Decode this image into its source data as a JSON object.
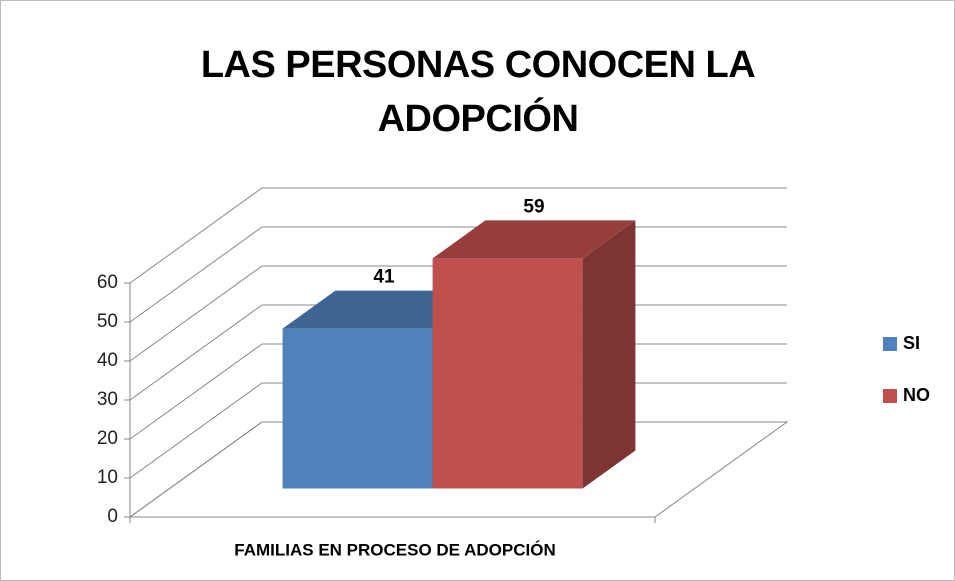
{
  "chart_data": {
    "type": "bar3d",
    "title": "LAS PERSONAS CONOCEN LA ADOPCIÓN",
    "categories": [
      "FAMILIAS EN PROCESO DE ADOPCIÓN"
    ],
    "series": [
      {
        "name": "SI",
        "color": "#4f81bd",
        "values": [
          41
        ]
      },
      {
        "name": "NO",
        "color": "#c0504d",
        "values": [
          59
        ]
      }
    ],
    "ylim": [
      0,
      60
    ],
    "yticks": [
      0,
      10,
      20,
      30,
      40,
      50,
      60
    ],
    "grid": true,
    "legend": "right"
  }
}
